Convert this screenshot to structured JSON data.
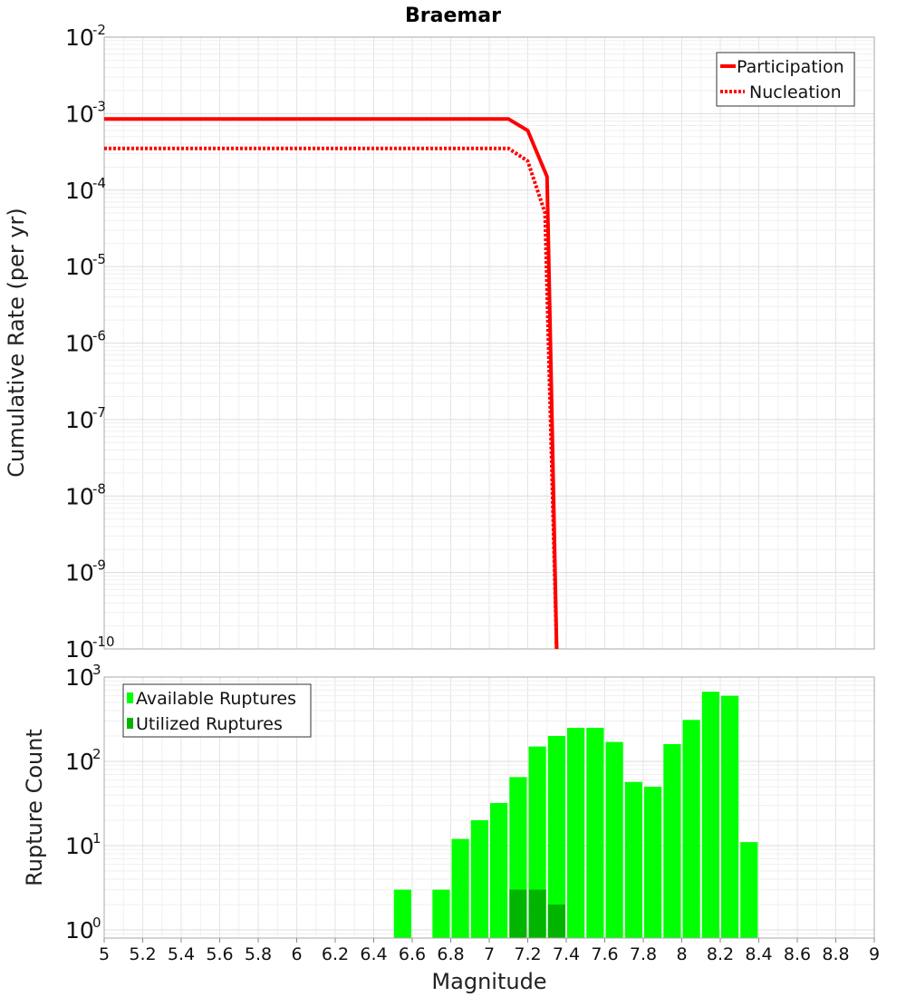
{
  "chart_data": [
    {
      "type": "line",
      "title": "Braemar",
      "xlabel": "",
      "ylabel": "Cumulative Rate (per yr)",
      "xlim": [
        5,
        9
      ],
      "ylim": [
        1e-10,
        0.01
      ],
      "yscale": "log",
      "grid": true,
      "legend": "top-right",
      "y_tick_labels": [
        {
          "base": "10",
          "exp": "-2"
        },
        {
          "base": "10",
          "exp": "-3"
        },
        {
          "base": "10",
          "exp": "-4"
        },
        {
          "base": "10",
          "exp": "-5"
        },
        {
          "base": "10",
          "exp": "-6"
        },
        {
          "base": "10",
          "exp": "-7"
        },
        {
          "base": "10",
          "exp": "-8"
        },
        {
          "base": "10",
          "exp": "-9"
        },
        {
          "base": "10",
          "exp": "-10"
        }
      ],
      "series": [
        {
          "name": "Participation",
          "style": "solid",
          "color": "#ff0000",
          "x": [
            5.0,
            7.1,
            7.2,
            7.3,
            7.35
          ],
          "y": [
            0.00085,
            0.00085,
            0.0006,
            0.00015,
            1e-10
          ]
        },
        {
          "name": "Nucleation",
          "style": "dotted",
          "color": "#ff0000",
          "x": [
            5.0,
            7.1,
            7.2,
            7.29,
            7.35
          ],
          "y": [
            0.00035,
            0.00035,
            0.00024,
            5e-05,
            1e-10
          ]
        }
      ]
    },
    {
      "type": "bar",
      "title": "",
      "xlabel": "Magnitude",
      "ylabel": "Rupture Count",
      "xlim": [
        5,
        9
      ],
      "ylim": [
        0.8,
        1000
      ],
      "yscale": "log",
      "grid": true,
      "legend": "top-left",
      "bin_width": 0.1,
      "x_tick_labels": [
        "5",
        "5.2",
        "5.4",
        "5.6",
        "5.8",
        "6",
        "6.2",
        "6.4",
        "6.6",
        "6.8",
        "7",
        "7.2",
        "7.4",
        "7.6",
        "7.8",
        "8",
        "8.2",
        "8.4",
        "8.6",
        "8.8",
        "9"
      ],
      "y_tick_labels": [
        {
          "base": "10",
          "exp": "3"
        },
        {
          "base": "10",
          "exp": "2"
        },
        {
          "base": "10",
          "exp": "1"
        },
        {
          "base": "10",
          "exp": "0"
        }
      ],
      "series": [
        {
          "name": "Available Ruptures",
          "color": "#00ff00",
          "x": [
            6.55,
            6.75,
            6.85,
            6.95,
            7.05,
            7.15,
            7.25,
            7.35,
            7.45,
            7.55,
            7.65,
            7.75,
            7.85,
            7.95,
            8.05,
            8.15,
            8.25,
            8.35
          ],
          "values": [
            3,
            3,
            12,
            20,
            32,
            65,
            150,
            200,
            250,
            250,
            170,
            57,
            50,
            160,
            310,
            670,
            600,
            11
          ]
        },
        {
          "name": "Utilized Ruptures",
          "color": "#00b400",
          "x": [
            7.15,
            7.25,
            7.35
          ],
          "values": [
            3,
            3,
            2
          ]
        }
      ]
    }
  ]
}
